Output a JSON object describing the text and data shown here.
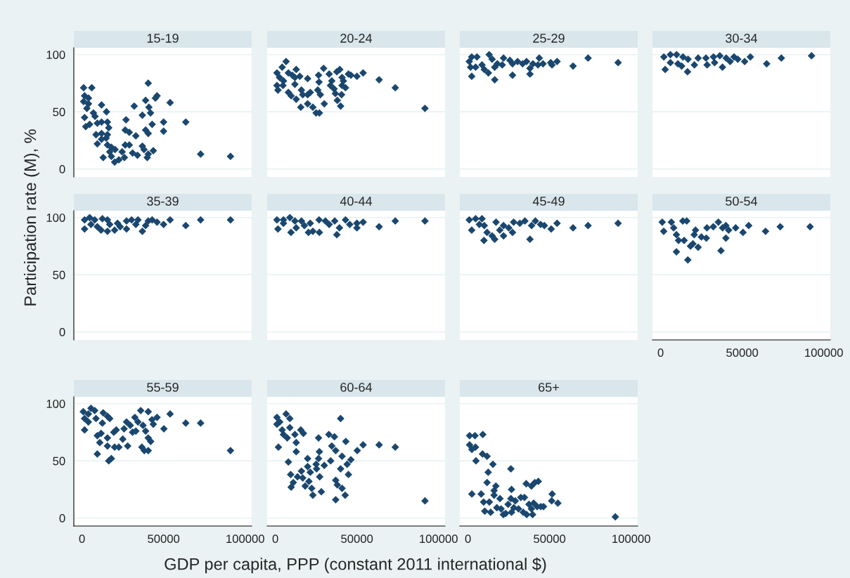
{
  "chart_data": [
    {
      "type": "scatter",
      "title": "15-19",
      "xlabel": "GDP per capita, PPP (constant 2011 international $)",
      "ylabel": "Participation rate (M), %",
      "color": "#1a476f",
      "marker": "diamond",
      "grid": "y",
      "xlim": [
        -5000,
        104000
      ],
      "ylim": [
        -7,
        106
      ],
      "xticks": [
        0,
        50000,
        100000
      ],
      "yticks": [
        0,
        50,
        100
      ],
      "tick_labels": "y",
      "x": [
        1000,
        6000,
        1600,
        4000,
        1000,
        4000,
        3000,
        12000,
        15000,
        7000,
        8000,
        1600,
        2300,
        4700,
        9400,
        12000,
        15600,
        16400,
        8600,
        12000,
        15600,
        12000,
        14800,
        9400,
        15600,
        18000,
        20300,
        17000,
        13000,
        18000,
        20000,
        22600,
        26000,
        24600,
        26500,
        29000,
        31000,
        34000,
        37000,
        38000,
        40600,
        40000,
        43700,
        26500,
        29000,
        33000,
        27000,
        32000,
        37000,
        39000,
        40600,
        43000,
        42000,
        41000,
        39000,
        40600,
        45000,
        46000,
        50000,
        50000,
        54000,
        63600,
        72700,
        91000
      ],
      "values": [
        71,
        71,
        64,
        62,
        59,
        57,
        53,
        56,
        50,
        49,
        46,
        45,
        37,
        39,
        40,
        41,
        41,
        36,
        30,
        31,
        30,
        26,
        27,
        22,
        21,
        19,
        17,
        15,
        10,
        11,
        6,
        8,
        10,
        15,
        21,
        21,
        14,
        12,
        20,
        17,
        13,
        10,
        16,
        34,
        32,
        29,
        43,
        55,
        47,
        34,
        31,
        39,
        49,
        54,
        60,
        75,
        62,
        64,
        41,
        33,
        58,
        41,
        13,
        11
      ]
    },
    {
      "type": "scatter",
      "title": "20-24",
      "color": "#1a476f",
      "marker": "diamond",
      "grid": "y",
      "xlim": [
        -5000,
        104000
      ],
      "ylim": [
        -7,
        106
      ],
      "xticks": [
        0,
        50000,
        100000
      ],
      "yticks": [
        0,
        50,
        100
      ],
      "tick_labels": false,
      "x": [
        6600,
        4200,
        1000,
        2600,
        5000,
        1000,
        1600,
        4700,
        8000,
        10400,
        12800,
        12000,
        15000,
        19800,
        12000,
        8000,
        9700,
        12800,
        16000,
        16800,
        19800,
        21400,
        15600,
        19800,
        23000,
        25000,
        27000,
        30000,
        27600,
        26000,
        26800,
        26500,
        29600,
        33000,
        34600,
        33800,
        36000,
        36800,
        38000,
        40000,
        40600,
        40900,
        43000,
        41700,
        40900,
        37700,
        39500,
        44800,
        46300,
        50000,
        53800,
        63600,
        73500,
        91700
      ],
      "values": [
        94,
        89,
        84,
        80,
        77,
        73,
        69,
        73,
        84,
        82,
        87,
        80,
        81,
        79,
        74,
        67,
        64,
        61,
        69,
        65,
        65,
        67,
        54,
        57,
        54,
        49,
        49,
        57,
        65,
        69,
        76,
        82,
        88,
        83,
        77,
        73,
        70,
        66,
        60,
        55,
        65,
        73,
        71,
        77,
        80,
        85,
        87,
        83,
        82,
        81,
        84,
        78,
        71,
        53
      ]
    },
    {
      "type": "scatter",
      "title": "25-29",
      "color": "#1a476f",
      "marker": "diamond",
      "grid": "y",
      "xlim": [
        -5000,
        104000
      ],
      "ylim": [
        -7,
        106
      ],
      "xticks": [
        0,
        50000,
        100000
      ],
      "yticks": [
        0,
        50,
        100
      ],
      "tick_labels": false,
      "x": [
        2300,
        5500,
        13000,
        800,
        1600,
        4700,
        2300,
        8600,
        10000,
        12500,
        16400,
        16400,
        14800,
        18000,
        21800,
        21000,
        25700,
        27300,
        27300,
        30400,
        33500,
        35900,
        38000,
        38000,
        39800,
        43700,
        42900,
        46000,
        50700,
        51500,
        54600,
        64400,
        73600,
        92000
      ],
      "values": [
        98,
        98,
        100,
        94,
        89,
        89,
        81,
        91,
        87,
        84,
        78,
        89,
        96,
        92,
        97,
        91,
        95,
        92,
        82,
        94,
        92,
        94,
        88,
        83,
        92,
        97,
        91,
        92,
        93,
        91,
        94,
        90,
        97,
        93
      ]
    },
    {
      "type": "scatter",
      "title": "30-34",
      "color": "#1a476f",
      "marker": "diamond",
      "grid": "y",
      "xlim": [
        -5000,
        104000
      ],
      "ylim": [
        -7,
        106
      ],
      "xticks": [
        0,
        50000,
        100000
      ],
      "yticks": [
        0,
        50,
        100
      ],
      "tick_labels": false,
      "x": [
        2000,
        6000,
        9800,
        2800,
        6000,
        10600,
        13700,
        12900,
        16500,
        16800,
        20700,
        23000,
        27800,
        28500,
        32400,
        33100,
        36300,
        37900,
        40200,
        42600,
        45000,
        47300,
        51500,
        55000,
        65000,
        74000,
        92500
      ],
      "values": [
        98,
        100,
        100,
        87,
        93,
        92,
        98,
        90,
        85,
        96,
        91,
        97,
        97,
        91,
        98,
        93,
        99,
        89,
        97,
        94,
        98,
        96,
        94,
        98,
        92,
        97,
        99
      ]
    },
    {
      "type": "scatter",
      "title": "35-39",
      "color": "#1a476f",
      "marker": "diamond",
      "grid": "y",
      "xlim": [
        -5000,
        104000
      ],
      "ylim": [
        -7,
        106
      ],
      "xticks": [
        0,
        50000,
        100000
      ],
      "yticks": [
        0,
        50,
        100
      ],
      "tick_labels": "y",
      "x": [
        1600,
        4700,
        1600,
        7800,
        5500,
        9400,
        11700,
        12500,
        15600,
        15600,
        17000,
        20000,
        21800,
        23400,
        27300,
        27300,
        30400,
        33000,
        34300,
        37000,
        39000,
        40600,
        43000,
        46000,
        50000,
        54000,
        63600,
        72700,
        91000
      ],
      "values": [
        98,
        100,
        90,
        98,
        94,
        92,
        89,
        99,
        98,
        88,
        94,
        89,
        95,
        92,
        90,
        97,
        98,
        94,
        98,
        88,
        93,
        97,
        98,
        96,
        94,
        98,
        93,
        98,
        98
      ]
    },
    {
      "type": "scatter",
      "title": "40-44",
      "color": "#1a476f",
      "marker": "diamond",
      "grid": "y",
      "xlim": [
        -5000,
        104000
      ],
      "ylim": [
        -7,
        106
      ],
      "xticks": [
        0,
        50000,
        100000
      ],
      "yticks": [
        0,
        50,
        100
      ],
      "tick_labels": false,
      "x": [
        1000,
        5000,
        8900,
        1600,
        5000,
        9600,
        12000,
        12800,
        16000,
        17800,
        20300,
        23000,
        21400,
        26800,
        27000,
        30700,
        33000,
        36400,
        37700,
        39300,
        43000,
        45600,
        50000,
        50000,
        53800,
        63600,
        73500,
        91700
      ],
      "values": [
        98,
        98,
        100,
        90,
        95,
        87,
        97,
        91,
        97,
        93,
        87,
        88,
        95,
        98,
        87,
        97,
        94,
        97,
        85,
        91,
        98,
        94,
        95,
        91,
        96,
        92,
        97,
        97
      ]
    },
    {
      "type": "scatter",
      "title": "45-49",
      "color": "#1a476f",
      "marker": "diamond",
      "grid": "y",
      "xlim": [
        -5000,
        104000
      ],
      "ylim": [
        -7,
        106
      ],
      "xticks": [
        0,
        50000,
        100000
      ],
      "yticks": [
        0,
        50,
        100
      ],
      "tick_labels": false,
      "x": [
        800,
        4700,
        8600,
        2300,
        7000,
        10000,
        11700,
        9800,
        14800,
        16400,
        17200,
        19500,
        21800,
        21800,
        25000,
        27300,
        28000,
        31800,
        34900,
        38000,
        39000,
        41300,
        44500,
        46800,
        51000,
        54600,
        64400,
        73600,
        92000
      ],
      "values": [
        98,
        99,
        99,
        89,
        94,
        93,
        87,
        80,
        84,
        81,
        96,
        89,
        93,
        84,
        91,
        87,
        96,
        95,
        97,
        81,
        93,
        97,
        94,
        93,
        90,
        95,
        91,
        93,
        95
      ]
    },
    {
      "type": "scatter",
      "title": "50-54",
      "color": "#1a476f",
      "marker": "diamond",
      "grid": "y",
      "xlim": [
        -5000,
        104000
      ],
      "ylim": [
        -7,
        106
      ],
      "xticks": [
        0,
        50000,
        100000
      ],
      "yticks": [
        0,
        50,
        100
      ],
      "tick_labels": "x",
      "x": [
        1000,
        1900,
        6600,
        8000,
        9700,
        11000,
        9700,
        13600,
        16000,
        14400,
        16700,
        18300,
        20600,
        19800,
        23000,
        21400,
        25000,
        28000,
        28400,
        32300,
        35400,
        37000,
        38000,
        40000,
        40000,
        41700,
        46000,
        50500,
        54000,
        64300,
        73300,
        91600
      ],
      "values": [
        96,
        88,
        96,
        91,
        85,
        80,
        70,
        97,
        97,
        80,
        63,
        75,
        85,
        77,
        74,
        89,
        83,
        82,
        91,
        92,
        96,
        71,
        91,
        93,
        82,
        89,
        91,
        87,
        93,
        88,
        92,
        92
      ]
    },
    {
      "type": "scatter",
      "title": "55-59",
      "color": "#1a476f",
      "marker": "diamond",
      "grid": "y",
      "xlim": [
        -5000,
        104000
      ],
      "ylim": [
        -7,
        106
      ],
      "xticks": [
        0,
        50000,
        100000
      ],
      "yticks": [
        0,
        50,
        100
      ],
      "x": [
        800,
        1600,
        1600,
        5500,
        3900,
        3900,
        7800,
        8600,
        13000,
        12500,
        15600,
        17000,
        9400,
        11700,
        10900,
        15600,
        15600,
        9400,
        16400,
        18000,
        19500,
        21000,
        20000,
        22600,
        25800,
        25000,
        27300,
        28000,
        29600,
        31000,
        33000,
        32400,
        34300,
        36000,
        37400,
        36700,
        38200,
        40600,
        39000,
        40600,
        42100,
        40600,
        43700,
        42900,
        46000,
        50200,
        54000,
        63600,
        72700,
        91000
      ],
      "values": [
        93,
        87,
        77,
        96,
        91,
        84,
        94,
        87,
        92,
        83,
        89,
        87,
        72,
        74,
        66,
        70,
        63,
        56,
        50,
        52,
        75,
        77,
        62,
        62,
        78,
        69,
        84,
        63,
        81,
        75,
        76,
        88,
        84,
        94,
        81,
        62,
        59,
        93,
        76,
        70,
        67,
        59,
        82,
        86,
        88,
        78,
        91,
        83,
        83,
        59
      ]
    },
    {
      "type": "scatter",
      "title": "60-64",
      "color": "#1a476f",
      "marker": "diamond",
      "grid": "y",
      "xlim": [
        -5000,
        104000
      ],
      "ylim": [
        -7,
        106
      ],
      "xticks": [
        0,
        50000,
        100000
      ],
      "yticks": [
        0,
        50,
        100
      ],
      "tick_labels": "x",
      "x": [
        1000,
        1000,
        2700,
        6600,
        8900,
        4200,
        5000,
        7300,
        1900,
        8900,
        12000,
        15600,
        17200,
        12800,
        12800,
        8000,
        9400,
        9700,
        11000,
        13600,
        16000,
        16800,
        18300,
        19800,
        19800,
        20600,
        21400,
        22300,
        23000,
        25000,
        25300,
        26500,
        27000,
        26500,
        27200,
        28200,
        30000,
        32800,
        33900,
        34600,
        36200,
        37000,
        37000,
        38000,
        37000,
        40000,
        40000,
        40900,
        40900,
        42800,
        43200,
        44000,
        44800,
        46300,
        50200,
        53800,
        63600,
        73500,
        91700
      ],
      "values": [
        88,
        82,
        84,
        91,
        87,
        77,
        73,
        70,
        62,
        79,
        73,
        77,
        74,
        66,
        58,
        49,
        38,
        27,
        31,
        36,
        41,
        35,
        28,
        52,
        45,
        32,
        40,
        26,
        20,
        47,
        43,
        70,
        58,
        52,
        36,
        23,
        46,
        73,
        50,
        63,
        71,
        59,
        33,
        29,
        16,
        87,
        43,
        54,
        26,
        20,
        67,
        47,
        38,
        51,
        59,
        64,
        64,
        62,
        15
      ]
    },
    {
      "type": "scatter",
      "title": "65+",
      "color": "#1a476f",
      "marker": "diamond",
      "grid": "y",
      "xlim": [
        -5000,
        104000
      ],
      "ylim": [
        -7,
        106
      ],
      "xticks": [
        0,
        50000,
        100000
      ],
      "yticks": [
        0,
        50,
        100
      ],
      "tick_labels": "x",
      "x": [
        1000,
        4300,
        9100,
        1000,
        4600,
        2400,
        8900,
        11700,
        4900,
        15300,
        26300,
        12400,
        11700,
        17100,
        16000,
        2400,
        8100,
        16000,
        19600,
        9600,
        13100,
        10300,
        13900,
        17700,
        20300,
        21700,
        23100,
        24600,
        26300,
        26700,
        26700,
        28100,
        29000,
        31000,
        32400,
        34600,
        33900,
        35700,
        36000,
        37400,
        38900,
        39600,
        40300,
        38900,
        41000,
        43100,
        42400,
        44600,
        46300,
        51300,
        51600,
        55100,
        90300
      ],
      "values": [
        72,
        72,
        73,
        64,
        62,
        60,
        56,
        54,
        50,
        47,
        43,
        40,
        31,
        28,
        24,
        21,
        21,
        20,
        17,
        14,
        14,
        6,
        5,
        9,
        8,
        3,
        4,
        12,
        17,
        25,
        5,
        9,
        15,
        8,
        18,
        18,
        5,
        30,
        3,
        12,
        8,
        3,
        13,
        28,
        31,
        32,
        10,
        10,
        10,
        15,
        21,
        13,
        1
      ]
    }
  ]
}
